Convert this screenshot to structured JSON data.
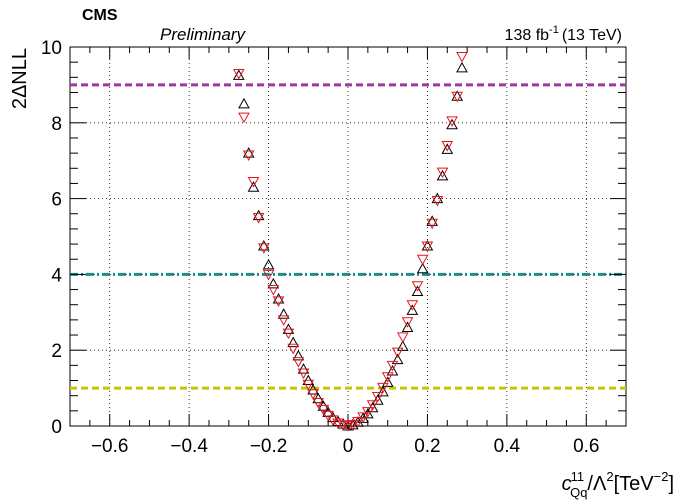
{
  "header": {
    "experiment": "CMS",
    "status": "Preliminary",
    "lumi_value": "138 fb",
    "lumi_exp": "-1",
    "lumi_energy": "(13 TeV)"
  },
  "axes": {
    "ylabel": "2ΔNLL",
    "xlabel_c": "c",
    "xlabel_sub": "Qq",
    "xlabel_sup": "11",
    "xlabel_mid": "/Λ",
    "xlabel_sq": "2",
    "xlabel_unit_open": "[TeV",
    "xlabel_unit_exp": "−2",
    "xlabel_unit_close": "]"
  },
  "chart_data": {
    "type": "scatter",
    "xlim": [
      -0.7,
      0.7
    ],
    "ylim": [
      0,
      10
    ],
    "xticks": [
      -0.6,
      -0.4,
      -0.2,
      0,
      0.2,
      0.4,
      0.6
    ],
    "xtick_labels": [
      "−0.6",
      "−0.4",
      "−0.2",
      "0",
      "0.2",
      "0.4",
      "0.6"
    ],
    "yticks": [
      0,
      2,
      4,
      6,
      8,
      10
    ],
    "ytick_labels": [
      "0",
      "2",
      "4",
      "6",
      "8",
      "10"
    ],
    "grid": true,
    "reference_lines": [
      {
        "y": 9,
        "color": "#a0369e",
        "style": "dashed"
      },
      {
        "y": 4,
        "color": "#1f8a8a",
        "style": "dashdot"
      },
      {
        "y": 1,
        "color": "#c8c400",
        "style": "dashed"
      }
    ],
    "series": [
      {
        "marker": "triangle-up",
        "color": "#000000",
        "points": [
          [
            -0.275,
            9.25
          ],
          [
            -0.262,
            8.5
          ],
          [
            -0.25,
            7.2
          ],
          [
            -0.238,
            6.3
          ],
          [
            -0.225,
            5.55
          ],
          [
            -0.212,
            4.75
          ],
          [
            -0.2,
            4.25
          ],
          [
            -0.188,
            3.75
          ],
          [
            -0.175,
            3.35
          ],
          [
            -0.162,
            2.95
          ],
          [
            -0.15,
            2.55
          ],
          [
            -0.138,
            2.2
          ],
          [
            -0.125,
            1.85
          ],
          [
            -0.112,
            1.5
          ],
          [
            -0.1,
            1.2
          ],
          [
            -0.088,
            0.95
          ],
          [
            -0.075,
            0.72
          ],
          [
            -0.062,
            0.52
          ],
          [
            -0.05,
            0.36
          ],
          [
            -0.038,
            0.22
          ],
          [
            -0.025,
            0.12
          ],
          [
            -0.012,
            0.05
          ],
          [
            0.0,
            0.0
          ],
          [
            0.012,
            0.03
          ],
          [
            0.025,
            0.1
          ],
          [
            0.038,
            0.2
          ],
          [
            0.05,
            0.32
          ],
          [
            0.062,
            0.48
          ],
          [
            0.075,
            0.68
          ],
          [
            0.088,
            0.9
          ],
          [
            0.1,
            1.15
          ],
          [
            0.112,
            1.45
          ],
          [
            0.125,
            1.75
          ],
          [
            0.138,
            2.1
          ],
          [
            0.15,
            2.6
          ],
          [
            0.162,
            3.05
          ],
          [
            0.175,
            3.55
          ],
          [
            0.188,
            4.15
          ],
          [
            0.2,
            4.75
          ],
          [
            0.212,
            5.4
          ],
          [
            0.225,
            6.0
          ],
          [
            0.238,
            6.6
          ],
          [
            0.25,
            7.3
          ],
          [
            0.262,
            7.95
          ],
          [
            0.275,
            8.7
          ],
          [
            0.287,
            9.45
          ]
        ]
      },
      {
        "marker": "triangle-down",
        "color": "#e8141c",
        "points": [
          [
            -0.275,
            9.3
          ],
          [
            -0.262,
            8.15
          ],
          [
            -0.25,
            7.15
          ],
          [
            -0.238,
            6.45
          ],
          [
            -0.225,
            5.5
          ],
          [
            -0.212,
            4.7
          ],
          [
            -0.2,
            4.0
          ],
          [
            -0.188,
            3.6
          ],
          [
            -0.175,
            3.3
          ],
          [
            -0.162,
            2.8
          ],
          [
            -0.15,
            2.45
          ],
          [
            -0.138,
            2.05
          ],
          [
            -0.125,
            1.7
          ],
          [
            -0.112,
            1.4
          ],
          [
            -0.1,
            1.1
          ],
          [
            -0.088,
            0.85
          ],
          [
            -0.075,
            0.62
          ],
          [
            -0.062,
            0.44
          ],
          [
            -0.05,
            0.28
          ],
          [
            -0.038,
            0.16
          ],
          [
            -0.025,
            0.08
          ],
          [
            -0.012,
            0.03
          ],
          [
            0.0,
            0.01
          ],
          [
            0.012,
            0.04
          ],
          [
            0.025,
            0.12
          ],
          [
            0.038,
            0.24
          ],
          [
            0.05,
            0.38
          ],
          [
            0.062,
            0.56
          ],
          [
            0.075,
            0.78
          ],
          [
            0.088,
            1.02
          ],
          [
            0.1,
            1.3
          ],
          [
            0.112,
            1.6
          ],
          [
            0.125,
            1.95
          ],
          [
            0.138,
            2.35
          ],
          [
            0.15,
            2.75
          ],
          [
            0.162,
            3.2
          ],
          [
            0.175,
            3.7
          ],
          [
            0.188,
            4.4
          ],
          [
            0.2,
            4.75
          ],
          [
            0.212,
            5.35
          ],
          [
            0.225,
            5.95
          ],
          [
            0.238,
            6.7
          ],
          [
            0.25,
            7.4
          ],
          [
            0.262,
            8.05
          ],
          [
            0.275,
            8.7
          ],
          [
            0.287,
            9.75
          ]
        ]
      }
    ]
  }
}
